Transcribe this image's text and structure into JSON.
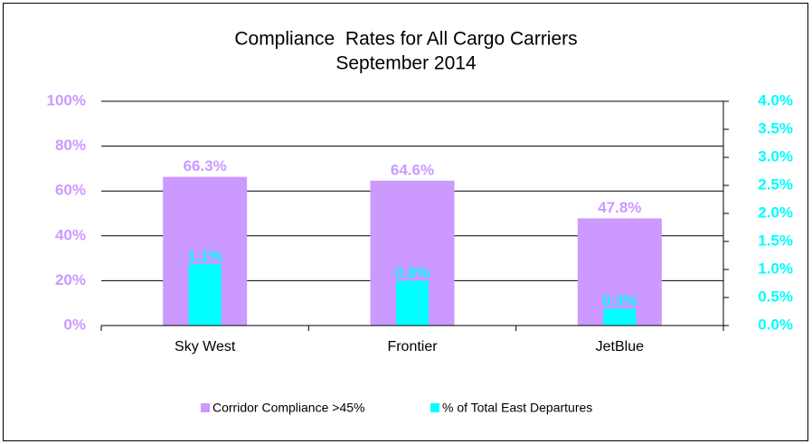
{
  "chart_data": {
    "type": "bar",
    "title": "Compliance  Rates for All Cargo Carriers",
    "subtitle": "September 2014",
    "categories": [
      "Sky West",
      "Frontier",
      "JetBlue"
    ],
    "series": [
      {
        "name": "Corridor Compliance >45%",
        "color": "#cc99ff",
        "values": [
          66.3,
          64.6,
          47.8
        ],
        "value_labels": [
          "66.3%",
          "64.6%",
          "47.8%"
        ]
      },
      {
        "name": "% of Total East Departures",
        "color": "#00ffff",
        "axis": "y2",
        "values": [
          1.1,
          0.8,
          0.3
        ],
        "value_labels": [
          "1.1%",
          "0.8%",
          "0.3%"
        ]
      }
    ],
    "ylim": [
      0,
      100
    ],
    "yticks": [
      {
        "value": 0,
        "label": "0%"
      },
      {
        "value": 20,
        "label": "20%"
      },
      {
        "value": 40,
        "label": "40%"
      },
      {
        "value": 60,
        "label": "60%"
      },
      {
        "value": 80,
        "label": "80%"
      },
      {
        "value": 100,
        "label": "100%"
      }
    ],
    "y2lim": [
      0,
      4
    ],
    "y2ticks": [
      {
        "value": 0,
        "label": "0.0%"
      },
      {
        "value": 0.5,
        "label": "0.5%"
      },
      {
        "value": 1,
        "label": "1.0%"
      },
      {
        "value": 1.5,
        "label": "1.5%"
      },
      {
        "value": 2,
        "label": "2.0%"
      },
      {
        "value": 2.5,
        "label": "2.5%"
      },
      {
        "value": 3,
        "label": "3.0%"
      },
      {
        "value": 3.5,
        "label": "3.5%"
      },
      {
        "value": 4,
        "label": "4.0%"
      }
    ],
    "grid": true,
    "legend": "bottom"
  }
}
